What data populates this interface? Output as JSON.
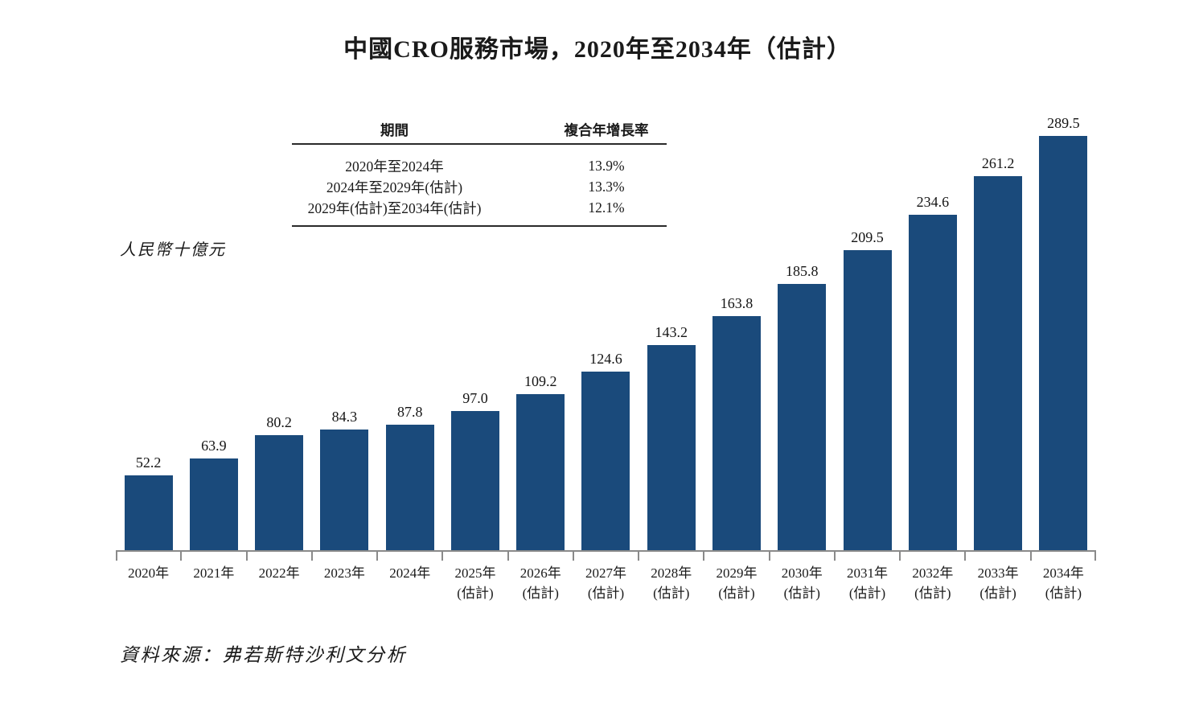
{
  "title": "中國CRO服務市場，2020年至2034年（估計）",
  "cagr_table": {
    "headers": {
      "period": "期間",
      "cagr": "複合年增長率"
    },
    "rows": [
      {
        "period": "2020年至2024年",
        "cagr": "13.9%"
      },
      {
        "period": "2024年至2029年(估計)",
        "cagr": "13.3%"
      },
      {
        "period": "2029年(估計)至2034年(估計)",
        "cagr": "12.1%"
      }
    ]
  },
  "unit_label": "人民幣十億元",
  "source": "資料來源：弗若斯特沙利文分析",
  "colors": {
    "bar": "#1A4A7B",
    "axis": "#8A8A8A",
    "text": "#1A1A1A",
    "table_rule": "#2A2A2A"
  },
  "chart_data": {
    "type": "bar",
    "title": "中國CRO服務市場，2020年至2034年（估計）",
    "ylabel": "人民幣十億元",
    "unit": "人民幣十億元 (RMB billions)",
    "ylim": [
      0,
      300
    ],
    "grid": false,
    "legend": false,
    "value_labels": true,
    "bar_color": "#1A4A7B",
    "categories": [
      {
        "year": "2020年",
        "note": ""
      },
      {
        "year": "2021年",
        "note": ""
      },
      {
        "year": "2022年",
        "note": ""
      },
      {
        "year": "2023年",
        "note": ""
      },
      {
        "year": "2024年",
        "note": ""
      },
      {
        "year": "2025年",
        "note": "(估計)"
      },
      {
        "year": "2026年",
        "note": "(估計)"
      },
      {
        "year": "2027年",
        "note": "(估計)"
      },
      {
        "year": "2028年",
        "note": "(估計)"
      },
      {
        "year": "2029年",
        "note": "(估計)"
      },
      {
        "year": "2030年",
        "note": "(估計)"
      },
      {
        "year": "2031年",
        "note": "(估計)"
      },
      {
        "year": "2032年",
        "note": "(估計)"
      },
      {
        "year": "2033年",
        "note": "(估計)"
      },
      {
        "year": "2034年",
        "note": "(估計)"
      }
    ],
    "values": [
      52.2,
      63.9,
      80.2,
      84.3,
      87.8,
      97.0,
      109.2,
      124.6,
      143.2,
      163.8,
      185.8,
      209.5,
      234.6,
      261.2,
      289.5
    ]
  }
}
